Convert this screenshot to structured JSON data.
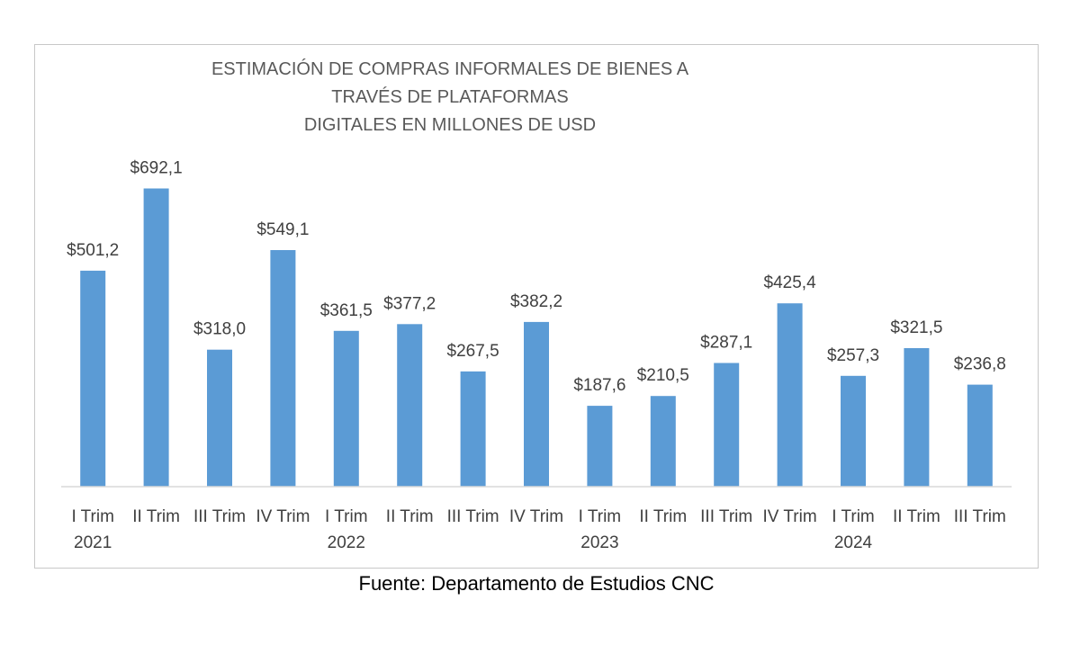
{
  "chart_data": {
    "type": "bar",
    "title_line1": "ESTIMACIÓN DE COMPRAS INFORMALES DE BIENES A TRAVÉS DE PLATAFORMAS",
    "title_line2": "DIGITALES EN MILLONES DE USD",
    "categories": [
      "I Trim",
      "II Trim",
      "III Trim",
      "IV Trim",
      "I Trim",
      "II Trim",
      "III Trim",
      "IV Trim",
      "I Trim",
      "II Trim",
      "III Trim",
      "IV Trim",
      "I Trim",
      "II Trim",
      "III Trim"
    ],
    "year_labels": [
      "2021",
      "",
      "",
      "",
      "2022",
      "",
      "",
      "",
      "2023",
      "",
      "",
      "",
      "2024",
      "",
      ""
    ],
    "values": [
      501.2,
      692.1,
      318.0,
      549.1,
      361.5,
      377.2,
      267.5,
      382.2,
      187.6,
      210.5,
      287.1,
      425.4,
      257.3,
      321.5,
      236.8
    ],
    "value_labels": [
      "$501,2",
      "$692,1",
      "$318,0",
      "$549,1",
      "$361,5",
      "$377,2",
      "$267,5",
      "$382,2",
      "$187,6",
      "$210,5",
      "$287,1",
      "$425,4",
      "$257,3",
      "$321,5",
      "$236,8"
    ],
    "ylim": [
      0,
      800
    ],
    "grid": false,
    "legend": "none",
    "bar_color": "#5b9bd5",
    "axis_color": "#d9d9d9"
  },
  "source": "Fuente: Departamento de Estudios CNC"
}
